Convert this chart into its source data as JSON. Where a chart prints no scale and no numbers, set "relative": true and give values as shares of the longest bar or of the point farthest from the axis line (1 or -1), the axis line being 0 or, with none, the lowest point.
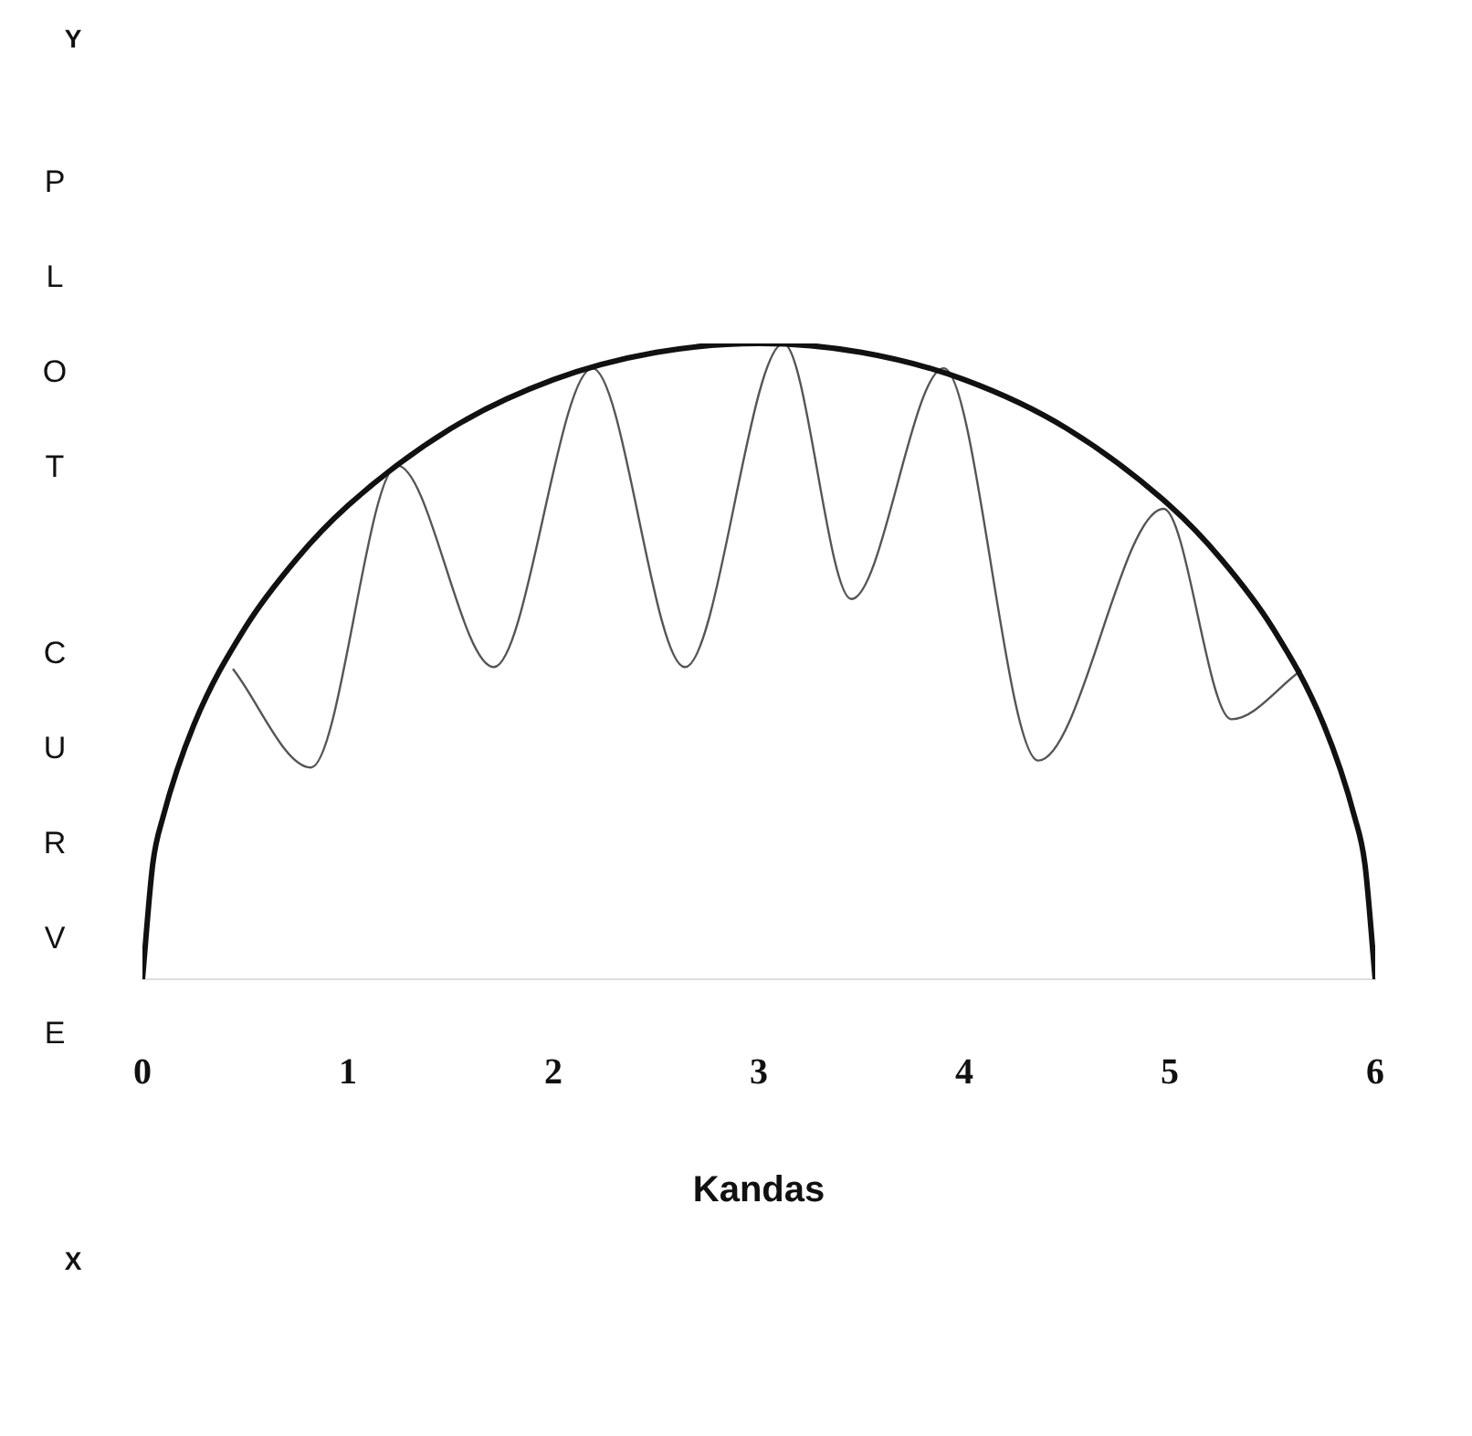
{
  "chart_data": {
    "type": "line",
    "relative": true,
    "xlabel": "Kandas",
    "ylabel": "PLOT CURVE",
    "annotations": [
      "Y",
      "X"
    ],
    "xlim": [
      0,
      6
    ],
    "xticks": [
      0,
      1,
      2,
      3,
      4,
      5,
      6
    ],
    "grid": false,
    "legend": false,
    "marker": "none",
    "series": [
      {
        "color": "#111111",
        "x": [
          0,
          0.05,
          0.1,
          0.25,
          0.5,
          0.75,
          1,
          1.5,
          2,
          2.5,
          3,
          3.5,
          4,
          4.5,
          5,
          5.25,
          5.5,
          5.75,
          5.9,
          5.95,
          6
        ],
        "values": [
          0,
          0.181,
          0.255,
          0.4,
          0.553,
          0.661,
          0.745,
          0.866,
          0.943,
          0.986,
          1,
          0.986,
          0.943,
          0.866,
          0.745,
          0.661,
          0.553,
          0.4,
          0.255,
          0.181,
          0
        ]
      },
      {
        "color": "#555555",
        "x": [
          0.44,
          0.82,
          1.24,
          1.71,
          2.19,
          2.64,
          3.12,
          3.45,
          3.9,
          4.36,
          4.97,
          5.3,
          5.64
        ],
        "values": [
          0.488,
          0.333,
          0.808,
          0.491,
          0.961,
          0.491,
          1,
          0.598,
          0.961,
          0.344,
          0.74,
          0.409,
          0.486
        ]
      }
    ]
  }
}
